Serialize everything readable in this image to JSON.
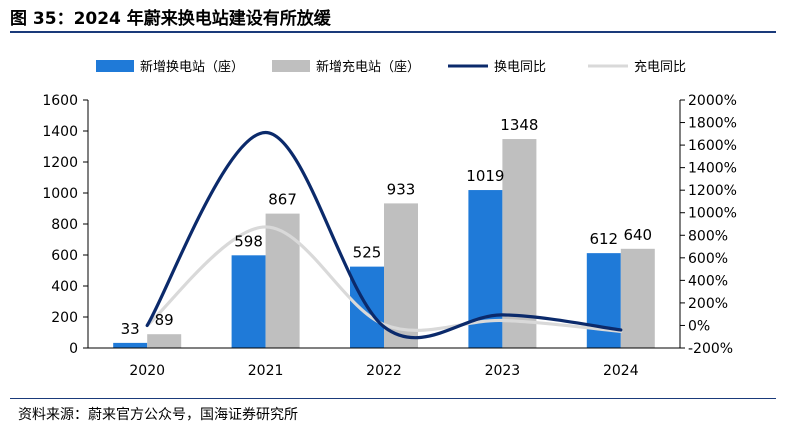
{
  "figure": {
    "title": "图 35：2024 年蔚来换电站建设有所放缓",
    "source": "资料来源：蔚来官方公众号，国海证券研究所"
  },
  "chart_data": {
    "type": "bar",
    "categories": [
      "2020",
      "2021",
      "2022",
      "2023",
      "2024"
    ],
    "series": [
      {
        "name": "新增换电站（座）",
        "kind": "bar",
        "axis": "left",
        "color": "#1f7ad8",
        "values": [
          33,
          598,
          525,
          1019,
          612
        ]
      },
      {
        "name": "新增充电站（座）",
        "kind": "bar",
        "axis": "left",
        "color": "#bfbfbf",
        "values": [
          89,
          867,
          933,
          1348,
          640
        ]
      },
      {
        "name": "换电同比",
        "kind": "line",
        "axis": "right",
        "color": "#0b2a6b",
        "values": [
          null,
          1712,
          -12,
          94,
          -40
        ]
      },
      {
        "name": "充电同比",
        "kind": "line",
        "axis": "right",
        "color": "#d9d9d9",
        "values": [
          null,
          874,
          8,
          44,
          -53
        ]
      }
    ],
    "left_axis": {
      "min": 0,
      "max": 1600,
      "step": 200,
      "ticks": [
        "0",
        "200",
        "400",
        "600",
        "800",
        "1000",
        "1200",
        "1400",
        "1600"
      ]
    },
    "right_axis": {
      "min": -200,
      "max": 2000,
      "step": 200,
      "ticks": [
        "-200%",
        "0%",
        "200%",
        "400%",
        "600%",
        "800%",
        "1000%",
        "1200%",
        "1400%",
        "1600%",
        "1800%",
        "2000%"
      ]
    },
    "legend_position": "top",
    "grid": false
  }
}
